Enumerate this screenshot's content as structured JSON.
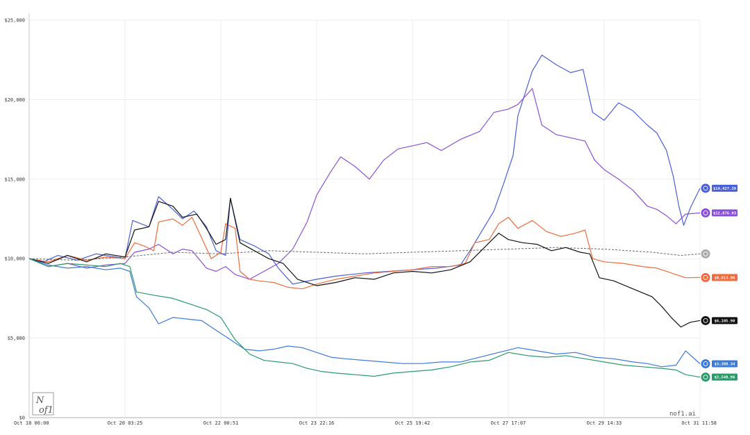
{
  "chart_data": {
    "type": "line",
    "ylim": [
      0,
      25000
    ],
    "y_ticks": [
      "$0",
      "$5,000",
      "$10,000",
      "$15,000",
      "$20,000",
      "$25,000"
    ],
    "y_tick_values": [
      0,
      5000,
      10000,
      15000,
      20000,
      25000
    ],
    "x_ticks": [
      "Oct 18 06:00",
      "Oct 20 03:25",
      "Oct 22 00:51",
      "Oct 23 22:16",
      "Oct 25 19:42",
      "Oct 27 17:07",
      "Oct 29 14:33",
      "Oct 31 11:58"
    ],
    "x_tick_values": [
      0,
      1,
      2,
      3,
      4,
      5,
      6,
      7
    ],
    "grid": true,
    "series": [
      {
        "end_label": "$14,427.39",
        "color": "#4a5ed8",
        "icon": "deepseek-whale-icon",
        "points": [
          [
            0,
            10000
          ],
          [
            0.15,
            9800
          ],
          [
            0.3,
            10200
          ],
          [
            0.5,
            9900
          ],
          [
            0.7,
            10300
          ],
          [
            0.9,
            10100
          ],
          [
            1.0,
            10000
          ],
          [
            1.08,
            12400
          ],
          [
            1.25,
            12000
          ],
          [
            1.35,
            13900
          ],
          [
            1.5,
            13100
          ],
          [
            1.6,
            12500
          ],
          [
            1.72,
            13000
          ],
          [
            1.85,
            12000
          ],
          [
            1.95,
            10500
          ],
          [
            2.05,
            10200
          ],
          [
            2.1,
            13800
          ],
          [
            2.2,
            11200
          ],
          [
            2.35,
            10800
          ],
          [
            2.5,
            10300
          ],
          [
            2.6,
            9400
          ],
          [
            2.75,
            8400
          ],
          [
            3.0,
            8700
          ],
          [
            3.2,
            8900
          ],
          [
            3.5,
            9100
          ],
          [
            3.75,
            9200
          ],
          [
            4.0,
            9300
          ],
          [
            4.25,
            9400
          ],
          [
            4.5,
            9600
          ],
          [
            4.6,
            10500
          ],
          [
            4.7,
            11500
          ],
          [
            4.85,
            13000
          ],
          [
            4.95,
            14700
          ],
          [
            5.05,
            16500
          ],
          [
            5.1,
            19000
          ],
          [
            5.25,
            21800
          ],
          [
            5.35,
            22800
          ],
          [
            5.5,
            22200
          ],
          [
            5.65,
            21700
          ],
          [
            5.78,
            21900
          ],
          [
            5.88,
            19200
          ],
          [
            6.0,
            18700
          ],
          [
            6.15,
            19800
          ],
          [
            6.3,
            19300
          ],
          [
            6.45,
            18400
          ],
          [
            6.55,
            17900
          ],
          [
            6.65,
            16800
          ],
          [
            6.72,
            15200
          ],
          [
            6.78,
            13300
          ],
          [
            6.83,
            12100
          ],
          [
            6.9,
            13200
          ],
          [
            7.0,
            14427
          ]
        ]
      },
      {
        "end_label": "$12,876.93",
        "color": "#8a4fd8",
        "icon": "grok-icon",
        "points": [
          [
            0,
            10000
          ],
          [
            0.2,
            9500
          ],
          [
            0.4,
            9700
          ],
          [
            0.6,
            9400
          ],
          [
            0.8,
            9600
          ],
          [
            1.0,
            9700
          ],
          [
            1.1,
            10400
          ],
          [
            1.25,
            10600
          ],
          [
            1.35,
            10900
          ],
          [
            1.5,
            10300
          ],
          [
            1.6,
            10600
          ],
          [
            1.7,
            10500
          ],
          [
            1.85,
            9400
          ],
          [
            1.95,
            9200
          ],
          [
            2.05,
            9500
          ],
          [
            2.15,
            9000
          ],
          [
            2.3,
            8700
          ],
          [
            2.45,
            9200
          ],
          [
            2.6,
            9700
          ],
          [
            2.75,
            10600
          ],
          [
            2.9,
            12300
          ],
          [
            3.0,
            14000
          ],
          [
            3.15,
            15500
          ],
          [
            3.25,
            16400
          ],
          [
            3.4,
            15800
          ],
          [
            3.55,
            15000
          ],
          [
            3.7,
            16200
          ],
          [
            3.85,
            16900
          ],
          [
            4.0,
            17100
          ],
          [
            4.15,
            17300
          ],
          [
            4.3,
            16800
          ],
          [
            4.5,
            17500
          ],
          [
            4.7,
            18000
          ],
          [
            4.85,
            19200
          ],
          [
            5.0,
            19400
          ],
          [
            5.1,
            19700
          ],
          [
            5.25,
            20700
          ],
          [
            5.35,
            18400
          ],
          [
            5.5,
            17800
          ],
          [
            5.65,
            17600
          ],
          [
            5.8,
            17400
          ],
          [
            5.9,
            16200
          ],
          [
            6.0,
            15600
          ],
          [
            6.15,
            15000
          ],
          [
            6.3,
            14300
          ],
          [
            6.45,
            13300
          ],
          [
            6.55,
            13100
          ],
          [
            6.65,
            12700
          ],
          [
            6.75,
            12200
          ],
          [
            6.85,
            12800
          ],
          [
            7.0,
            12876
          ]
        ]
      },
      {
        "end_label": "$8,813.96",
        "color": "#f06a3a",
        "icon": "claude-icon",
        "points": [
          [
            0,
            10000
          ],
          [
            0.2,
            9800
          ],
          [
            0.4,
            10200
          ],
          [
            0.6,
            9900
          ],
          [
            0.8,
            10100
          ],
          [
            1.0,
            10000
          ],
          [
            1.1,
            11000
          ],
          [
            1.2,
            10800
          ],
          [
            1.3,
            10500
          ],
          [
            1.35,
            12300
          ],
          [
            1.5,
            12500
          ],
          [
            1.6,
            12100
          ],
          [
            1.7,
            12600
          ],
          [
            1.8,
            11300
          ],
          [
            1.9,
            10000
          ],
          [
            2.0,
            10400
          ],
          [
            2.05,
            12200
          ],
          [
            2.15,
            11900
          ],
          [
            2.2,
            9200
          ],
          [
            2.3,
            8700
          ],
          [
            2.4,
            8600
          ],
          [
            2.55,
            8500
          ],
          [
            2.7,
            8200
          ],
          [
            2.85,
            8100
          ],
          [
            3.0,
            8400
          ],
          [
            3.2,
            8700
          ],
          [
            3.4,
            8900
          ],
          [
            3.6,
            9100
          ],
          [
            3.8,
            9200
          ],
          [
            4.0,
            9300
          ],
          [
            4.2,
            9500
          ],
          [
            4.4,
            9500
          ],
          [
            4.55,
            9700
          ],
          [
            4.65,
            11000
          ],
          [
            4.8,
            11200
          ],
          [
            4.9,
            12200
          ],
          [
            5.0,
            12600
          ],
          [
            5.1,
            11900
          ],
          [
            5.25,
            12400
          ],
          [
            5.4,
            11700
          ],
          [
            5.55,
            11400
          ],
          [
            5.7,
            11600
          ],
          [
            5.8,
            11800
          ],
          [
            5.88,
            10000
          ],
          [
            6.0,
            9800
          ],
          [
            6.2,
            9700
          ],
          [
            6.4,
            9500
          ],
          [
            6.55,
            9400
          ],
          [
            6.7,
            9100
          ],
          [
            6.85,
            8800
          ],
          [
            7.0,
            8813
          ]
        ]
      },
      {
        "end_label": "",
        "color": "#666666",
        "icon": "btc-benchmark-icon",
        "dashed": true,
        "points": [
          [
            0,
            10000
          ],
          [
            0.5,
            9900
          ],
          [
            1.0,
            10100
          ],
          [
            1.5,
            10400
          ],
          [
            2.0,
            10300
          ],
          [
            2.5,
            10500
          ],
          [
            3.0,
            10400
          ],
          [
            3.5,
            10300
          ],
          [
            4.0,
            10400
          ],
          [
            4.5,
            10500
          ],
          [
            5.0,
            10600
          ],
          [
            5.5,
            10700
          ],
          [
            6.0,
            10600
          ],
          [
            6.5,
            10400
          ],
          [
            6.8,
            10200
          ],
          [
            7.0,
            10300
          ]
        ]
      },
      {
        "end_label": "$6,105.90",
        "color": "#111111",
        "icon": "qwen-icon",
        "points": [
          [
            0,
            10000
          ],
          [
            0.2,
            9700
          ],
          [
            0.4,
            10200
          ],
          [
            0.6,
            9800
          ],
          [
            0.8,
            10300
          ],
          [
            1.0,
            10100
          ],
          [
            1.1,
            11800
          ],
          [
            1.25,
            12000
          ],
          [
            1.35,
            13600
          ],
          [
            1.5,
            13300
          ],
          [
            1.6,
            12600
          ],
          [
            1.75,
            12800
          ],
          [
            1.85,
            11900
          ],
          [
            1.95,
            10900
          ],
          [
            2.05,
            11200
          ],
          [
            2.1,
            13800
          ],
          [
            2.2,
            11000
          ],
          [
            2.35,
            10500
          ],
          [
            2.5,
            10000
          ],
          [
            2.65,
            9700
          ],
          [
            2.8,
            8700
          ],
          [
            3.0,
            8300
          ],
          [
            3.2,
            8500
          ],
          [
            3.4,
            8800
          ],
          [
            3.6,
            8700
          ],
          [
            3.8,
            9100
          ],
          [
            4.0,
            9200
          ],
          [
            4.2,
            9100
          ],
          [
            4.4,
            9300
          ],
          [
            4.6,
            9800
          ],
          [
            4.75,
            10700
          ],
          [
            4.9,
            11600
          ],
          [
            5.0,
            11200
          ],
          [
            5.15,
            11000
          ],
          [
            5.3,
            10900
          ],
          [
            5.45,
            10500
          ],
          [
            5.6,
            10700
          ],
          [
            5.75,
            10400
          ],
          [
            5.85,
            10300
          ],
          [
            5.95,
            8800
          ],
          [
            6.1,
            8600
          ],
          [
            6.3,
            8100
          ],
          [
            6.5,
            7600
          ],
          [
            6.6,
            7000
          ],
          [
            6.7,
            6300
          ],
          [
            6.8,
            5700
          ],
          [
            6.9,
            6000
          ],
          [
            7.0,
            6105
          ]
        ]
      },
      {
        "end_label": "$3,388.34",
        "color": "#3a7ad8",
        "icon": "gemini-icon",
        "points": [
          [
            0,
            10000
          ],
          [
            0.2,
            9600
          ],
          [
            0.4,
            9400
          ],
          [
            0.6,
            9500
          ],
          [
            0.8,
            9300
          ],
          [
            0.95,
            9400
          ],
          [
            1.05,
            9200
          ],
          [
            1.12,
            7600
          ],
          [
            1.25,
            6900
          ],
          [
            1.35,
            5900
          ],
          [
            1.5,
            6300
          ],
          [
            1.65,
            6200
          ],
          [
            1.8,
            6100
          ],
          [
            1.95,
            5500
          ],
          [
            2.1,
            4900
          ],
          [
            2.25,
            4300
          ],
          [
            2.4,
            4200
          ],
          [
            2.55,
            4300
          ],
          [
            2.7,
            4500
          ],
          [
            2.85,
            4400
          ],
          [
            3.0,
            4100
          ],
          [
            3.15,
            3800
          ],
          [
            3.3,
            3700
          ],
          [
            3.5,
            3600
          ],
          [
            3.7,
            3500
          ],
          [
            3.9,
            3400
          ],
          [
            4.1,
            3400
          ],
          [
            4.3,
            3500
          ],
          [
            4.5,
            3500
          ],
          [
            4.7,
            3800
          ],
          [
            4.9,
            4100
          ],
          [
            5.1,
            4400
          ],
          [
            5.3,
            4200
          ],
          [
            5.5,
            4000
          ],
          [
            5.7,
            4100
          ],
          [
            5.9,
            3800
          ],
          [
            6.1,
            3700
          ],
          [
            6.3,
            3500
          ],
          [
            6.45,
            3400
          ],
          [
            6.6,
            3200
          ],
          [
            6.75,
            3300
          ],
          [
            6.85,
            4200
          ],
          [
            7.0,
            3388
          ]
        ]
      },
      {
        "end_label": "$2,548.96",
        "color": "#2a9a6a",
        "icon": "openai-icon",
        "points": [
          [
            0,
            10000
          ],
          [
            0.2,
            9500
          ],
          [
            0.4,
            9700
          ],
          [
            0.6,
            9600
          ],
          [
            0.8,
            9500
          ],
          [
            0.95,
            9700
          ],
          [
            1.05,
            9500
          ],
          [
            1.12,
            7900
          ],
          [
            1.3,
            7700
          ],
          [
            1.5,
            7500
          ],
          [
            1.7,
            7100
          ],
          [
            1.85,
            6800
          ],
          [
            2.0,
            6300
          ],
          [
            2.15,
            4900
          ],
          [
            2.3,
            4000
          ],
          [
            2.45,
            3600
          ],
          [
            2.6,
            3500
          ],
          [
            2.75,
            3400
          ],
          [
            2.9,
            3100
          ],
          [
            3.05,
            2900
          ],
          [
            3.2,
            2800
          ],
          [
            3.4,
            2700
          ],
          [
            3.6,
            2600
          ],
          [
            3.8,
            2800
          ],
          [
            4.0,
            2900
          ],
          [
            4.2,
            3000
          ],
          [
            4.4,
            3200
          ],
          [
            4.6,
            3500
          ],
          [
            4.8,
            3600
          ],
          [
            5.0,
            4100
          ],
          [
            5.2,
            3900
          ],
          [
            5.4,
            3800
          ],
          [
            5.6,
            3900
          ],
          [
            5.8,
            3700
          ],
          [
            6.0,
            3500
          ],
          [
            6.2,
            3300
          ],
          [
            6.4,
            3200
          ],
          [
            6.6,
            3100
          ],
          [
            6.75,
            3000
          ],
          [
            6.85,
            2700
          ],
          [
            7.0,
            2549
          ]
        ]
      }
    ]
  },
  "watermark": "nof1.ai",
  "logo": {
    "line1": "N",
    "line2": "of1"
  }
}
